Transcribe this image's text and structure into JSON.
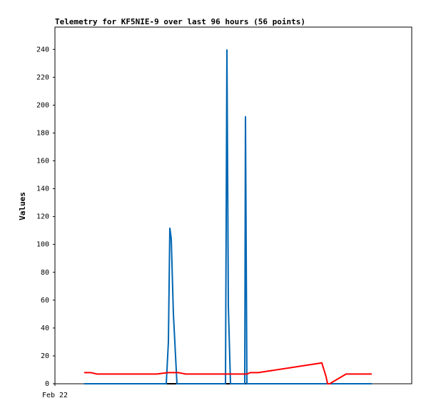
{
  "chart_data": {
    "type": "line",
    "title": "Telemetry for KF5NIE-9 over last 96 hours (56 points)",
    "y_label": "Values",
    "xlim": [
      0,
      100
    ],
    "xticks": [
      {
        "value": 0,
        "label": "Feb 22"
      }
    ],
    "ylim": [
      0,
      256
    ],
    "yticks": [
      0,
      20,
      40,
      60,
      80,
      100,
      120,
      140,
      160,
      180,
      200,
      220,
      240
    ],
    "series": [
      {
        "color": "#000000",
        "x": [
          8.2,
          88.8
        ],
        "values": [
          0,
          0
        ]
      },
      {
        "color": "#0066b3",
        "x": [
          8.2,
          31.2,
          31.8,
          32.2,
          32.6,
          33.2,
          34.2,
          47.8,
          48.2,
          48.4,
          48.6,
          49.2,
          53.2,
          53.4,
          53.6,
          53.8,
          88.8
        ],
        "values": [
          0,
          0,
          30,
          112,
          104,
          50,
          0,
          0,
          240,
          152,
          56,
          0,
          0,
          192,
          96,
          0,
          0
        ]
      },
      {
        "color": "#ff0000",
        "x": [
          8.2,
          10,
          11.8,
          28.6,
          31.6,
          34.6,
          36.6,
          53.8,
          54.8,
          57,
          74.8,
          76,
          76.4,
          77,
          81.6,
          88.8
        ],
        "values": [
          8,
          8,
          7,
          7,
          8,
          8,
          7,
          7,
          8,
          8,
          15,
          5,
          0,
          0,
          7,
          7
        ]
      }
    ]
  }
}
